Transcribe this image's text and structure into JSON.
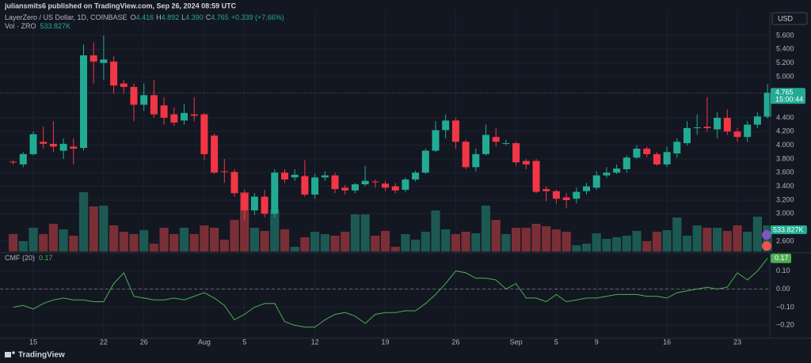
{
  "header": {
    "publisher": "juliansmits6 published on TradingView.com, Sep 26, 2024 08:59 UTC",
    "currency": "USD",
    "brand": "TradingView"
  },
  "chart_data": [
    {
      "type": "candlestick",
      "title": "LayerZero / US Dollar, 1D, COINBASE",
      "legend": {
        "o_key": "O",
        "o": "4.416",
        "h_key": "H",
        "h": "4.892",
        "l_key": "L",
        "l": "4.390",
        "c_key": "C",
        "c": "4.765",
        "change": "+0.339 (+7.66%)"
      },
      "volume_title": "Vol · ZRO",
      "volume_last_label": "533.827K",
      "countdown": "15:00:44",
      "up_color": "#22ab94",
      "down_color": "#f23645",
      "volume_up_color": "#1d5953",
      "volume_down_color": "#7a2f36",
      "grid": true,
      "x": [
        "2024-07-13",
        "2024-07-14",
        "2024-07-15",
        "2024-07-16",
        "2024-07-17",
        "2024-07-18",
        "2024-07-19",
        "2024-07-20",
        "2024-07-21",
        "2024-07-22",
        "2024-07-23",
        "2024-07-24",
        "2024-07-25",
        "2024-07-26",
        "2024-07-27",
        "2024-07-28",
        "2024-07-29",
        "2024-07-30",
        "2024-07-31",
        "2024-08-01",
        "2024-08-02",
        "2024-08-03",
        "2024-08-04",
        "2024-08-05",
        "2024-08-06",
        "2024-08-07",
        "2024-08-08",
        "2024-08-09",
        "2024-08-10",
        "2024-08-11",
        "2024-08-12",
        "2024-08-13",
        "2024-08-14",
        "2024-08-15",
        "2024-08-16",
        "2024-08-17",
        "2024-08-18",
        "2024-08-19",
        "2024-08-20",
        "2024-08-21",
        "2024-08-22",
        "2024-08-23",
        "2024-08-24",
        "2024-08-25",
        "2024-08-26",
        "2024-08-27",
        "2024-08-28",
        "2024-08-29",
        "2024-08-30",
        "2024-08-31",
        "2024-09-01",
        "2024-09-02",
        "2024-09-03",
        "2024-09-04",
        "2024-09-05",
        "2024-09-06",
        "2024-09-07",
        "2024-09-08",
        "2024-09-09",
        "2024-09-10",
        "2024-09-11",
        "2024-09-12",
        "2024-09-13",
        "2024-09-14",
        "2024-09-15",
        "2024-09-16",
        "2024-09-17",
        "2024-09-18",
        "2024-09-19",
        "2024-09-20",
        "2024-09-21",
        "2024-09-22",
        "2024-09-23",
        "2024-09-24",
        "2024-09-25",
        "2024-09-26"
      ],
      "open": [
        3.76,
        3.72,
        3.87,
        4.05,
        4.02,
        3.92,
        3.98,
        3.96,
        5.31,
        5.2,
        5.22,
        4.9,
        4.85,
        4.59,
        4.73,
        4.58,
        4.45,
        4.36,
        4.45,
        4.45,
        4.14,
        3.62,
        3.61,
        3.3,
        3.05,
        3.25,
        3.0,
        3.6,
        3.53,
        3.55,
        3.28,
        3.53,
        3.56,
        3.38,
        3.34,
        3.43,
        3.47,
        3.44,
        3.4,
        3.35,
        3.5,
        3.6,
        3.92,
        4.22,
        4.36,
        4.05,
        3.68,
        3.87,
        4.12,
        4.03,
        4.03,
        3.77,
        3.77,
        3.36,
        3.33,
        3.24,
        3.22,
        3.33,
        3.38,
        3.56,
        3.6,
        3.65,
        3.82,
        3.95,
        3.87,
        3.72,
        3.88,
        4.03,
        4.25,
        4.27,
        4.23,
        4.4,
        4.2,
        4.12,
        4.3,
        4.416
      ],
      "high": [
        3.78,
        3.9,
        4.2,
        4.27,
        4.35,
        4.1,
        4.1,
        5.47,
        5.5,
        5.6,
        5.3,
        4.95,
        4.9,
        4.9,
        4.95,
        4.7,
        4.55,
        4.6,
        4.7,
        4.47,
        4.17,
        3.8,
        3.65,
        3.35,
        3.3,
        3.35,
        3.65,
        3.65,
        3.65,
        3.78,
        3.58,
        3.62,
        3.6,
        3.42,
        3.45,
        3.7,
        3.5,
        3.48,
        3.45,
        3.53,
        3.63,
        3.95,
        4.35,
        4.45,
        4.4,
        4.08,
        3.95,
        4.3,
        4.25,
        4.08,
        4.05,
        3.8,
        3.8,
        3.4,
        3.35,
        3.3,
        3.38,
        3.45,
        3.62,
        3.68,
        3.72,
        3.85,
        4.0,
        3.98,
        3.9,
        3.98,
        4.1,
        4.35,
        4.45,
        4.7,
        4.48,
        4.52,
        4.25,
        4.35,
        4.48,
        4.892
      ],
      "low": [
        3.72,
        3.68,
        3.85,
        3.95,
        3.9,
        3.8,
        3.72,
        3.92,
        4.9,
        4.95,
        4.75,
        4.75,
        4.35,
        4.5,
        4.4,
        4.3,
        4.28,
        4.3,
        4.35,
        3.78,
        3.58,
        3.45,
        3.25,
        2.9,
        2.98,
        2.95,
        2.95,
        3.45,
        3.48,
        3.25,
        3.22,
        3.48,
        3.3,
        3.28,
        3.3,
        3.4,
        3.38,
        3.33,
        3.3,
        3.32,
        3.47,
        3.58,
        3.9,
        4.1,
        3.95,
        3.65,
        3.62,
        3.85,
        3.98,
        4.0,
        3.7,
        3.65,
        3.3,
        3.18,
        3.15,
        3.08,
        3.15,
        3.28,
        3.35,
        3.52,
        3.58,
        3.6,
        3.8,
        3.82,
        3.7,
        3.68,
        3.82,
        4.0,
        4.15,
        4.2,
        4.1,
        4.15,
        4.05,
        4.05,
        4.25,
        4.39
      ],
      "close": [
        3.75,
        3.87,
        4.16,
        4.02,
        3.98,
        4.02,
        3.95,
        5.31,
        5.22,
        5.25,
        4.87,
        4.85,
        4.59,
        4.73,
        4.45,
        4.4,
        4.33,
        4.47,
        4.43,
        3.87,
        3.6,
        3.61,
        3.3,
        3.05,
        3.25,
        3.0,
        3.6,
        3.5,
        3.57,
        3.28,
        3.53,
        3.56,
        3.36,
        3.34,
        3.43,
        3.48,
        3.46,
        3.38,
        3.34,
        3.5,
        3.6,
        3.92,
        4.22,
        4.36,
        4.05,
        3.68,
        3.87,
        4.15,
        4.05,
        4.03,
        3.75,
        3.72,
        3.32,
        3.33,
        3.22,
        3.2,
        3.32,
        3.4,
        3.56,
        3.6,
        3.66,
        3.82,
        3.95,
        3.87,
        3.72,
        3.9,
        4.05,
        4.25,
        4.26,
        4.25,
        4.4,
        4.2,
        4.12,
        4.3,
        4.42,
        4.765
      ],
      "volume": [
        356,
        211,
        486,
        356,
        567,
        454,
        324,
        1215,
        923,
        940,
        535,
        405,
        356,
        437,
        162,
        486,
        356,
        486,
        356,
        535,
        486,
        243,
        648,
        1215,
        486,
        421,
        859,
        454,
        97,
        292,
        405,
        356,
        324,
        405,
        761,
        761,
        324,
        421,
        97,
        356,
        243,
        405,
        842,
        454,
        356,
        405,
        373,
        940,
        648,
        356,
        486,
        486,
        567,
        518,
        454,
        405,
        130,
        162,
        373,
        259,
        292,
        324,
        421,
        211,
        405,
        437,
        697,
        324,
        535,
        486,
        486,
        421,
        535,
        405,
        713,
        533.827
      ],
      "ylim": [
        2.45,
        5.91
      ],
      "yticks": [
        {
          "value": 5.6,
          "label": "5.600"
        },
        {
          "value": 5.4,
          "label": "5.400"
        },
        {
          "value": 5.2,
          "label": "5.200"
        },
        {
          "value": 5.0,
          "label": "5.000"
        },
        {
          "value": 4.4,
          "label": "4.400"
        },
        {
          "value": 4.2,
          "label": "4.200"
        },
        {
          "value": 4.0,
          "label": "4.000"
        },
        {
          "value": 3.8,
          "label": "3.800"
        },
        {
          "value": 3.6,
          "label": "3.600"
        },
        {
          "value": 3.4,
          "label": "3.400"
        },
        {
          "value": 3.2,
          "label": "3.200"
        },
        {
          "value": 3.0,
          "label": "3.000"
        },
        {
          "value": 2.6,
          "label": "2.600"
        }
      ]
    },
    {
      "type": "line",
      "title": "CMF (20)",
      "color": "#4caf50",
      "reference_line": 0,
      "grid": true,
      "x": [
        "2024-07-13",
        "2024-07-14",
        "2024-07-15",
        "2024-07-16",
        "2024-07-17",
        "2024-07-18",
        "2024-07-19",
        "2024-07-20",
        "2024-07-21",
        "2024-07-22",
        "2024-07-23",
        "2024-07-24",
        "2024-07-25",
        "2024-07-26",
        "2024-07-27",
        "2024-07-28",
        "2024-07-29",
        "2024-07-30",
        "2024-07-31",
        "2024-08-01",
        "2024-08-02",
        "2024-08-03",
        "2024-08-04",
        "2024-08-05",
        "2024-08-06",
        "2024-08-07",
        "2024-08-08",
        "2024-08-09",
        "2024-08-10",
        "2024-08-11",
        "2024-08-12",
        "2024-08-13",
        "2024-08-14",
        "2024-08-15",
        "2024-08-16",
        "2024-08-17",
        "2024-08-18",
        "2024-08-19",
        "2024-08-20",
        "2024-08-21",
        "2024-08-22",
        "2024-08-23",
        "2024-08-24",
        "2024-08-25",
        "2024-08-26",
        "2024-08-27",
        "2024-08-28",
        "2024-08-29",
        "2024-08-30",
        "2024-08-31",
        "2024-09-01",
        "2024-09-02",
        "2024-09-03",
        "2024-09-04",
        "2024-09-05",
        "2024-09-06",
        "2024-09-07",
        "2024-09-08",
        "2024-09-09",
        "2024-09-10",
        "2024-09-11",
        "2024-09-12",
        "2024-09-13",
        "2024-09-14",
        "2024-09-15",
        "2024-09-16",
        "2024-09-17",
        "2024-09-18",
        "2024-09-19",
        "2024-09-20",
        "2024-09-21",
        "2024-09-22",
        "2024-09-23",
        "2024-09-24",
        "2024-09-25",
        "2024-09-26"
      ],
      "values": [
        -0.1,
        -0.09,
        -0.11,
        -0.08,
        -0.06,
        -0.05,
        -0.06,
        -0.06,
        -0.07,
        -0.07,
        0.03,
        0.09,
        -0.04,
        -0.05,
        -0.06,
        -0.06,
        -0.05,
        -0.06,
        -0.04,
        -0.02,
        -0.05,
        -0.09,
        -0.17,
        -0.14,
        -0.1,
        -0.08,
        -0.08,
        -0.18,
        -0.2,
        -0.21,
        -0.21,
        -0.17,
        -0.14,
        -0.13,
        -0.15,
        -0.19,
        -0.14,
        -0.13,
        -0.13,
        -0.12,
        -0.12,
        -0.08,
        -0.03,
        0.03,
        0.1,
        0.09,
        0.06,
        0.06,
        0.05,
        0,
        0.03,
        -0.05,
        -0.05,
        -0.07,
        -0.03,
        -0.07,
        -0.06,
        -0.05,
        -0.05,
        -0.04,
        -0.03,
        -0.03,
        -0.03,
        -0.04,
        -0.04,
        -0.05,
        -0.02,
        -0.01,
        0,
        0.01,
        0,
        0.01,
        0.09,
        0.05,
        0.1,
        0.17
      ],
      "ylim": [
        -0.26,
        0.19
      ],
      "yticks": [
        {
          "value": 0.1,
          "label": "0.10"
        },
        {
          "value": 0,
          "label": "0.00"
        },
        {
          "value": -0.1,
          "label": "−0.10"
        },
        {
          "value": -0.2,
          "label": "−0.20"
        }
      ],
      "xticks": [
        {
          "value": "2024-07-15",
          "label": "15"
        },
        {
          "value": "2024-07-22",
          "label": "22"
        },
        {
          "value": "2024-07-26",
          "label": "26"
        },
        {
          "value": "2024-08-01",
          "label": "Aug"
        },
        {
          "value": "2024-08-05",
          "label": "5"
        },
        {
          "value": "2024-08-12",
          "label": "12"
        },
        {
          "value": "2024-08-19",
          "label": "19"
        },
        {
          "value": "2024-08-26",
          "label": "26"
        },
        {
          "value": "2024-09-01",
          "label": "Sep"
        },
        {
          "value": "2024-09-05",
          "label": "5"
        },
        {
          "value": "2024-09-09",
          "label": "9"
        },
        {
          "value": "2024-09-16",
          "label": "16"
        },
        {
          "value": "2024-09-23",
          "label": "23"
        }
      ]
    }
  ]
}
